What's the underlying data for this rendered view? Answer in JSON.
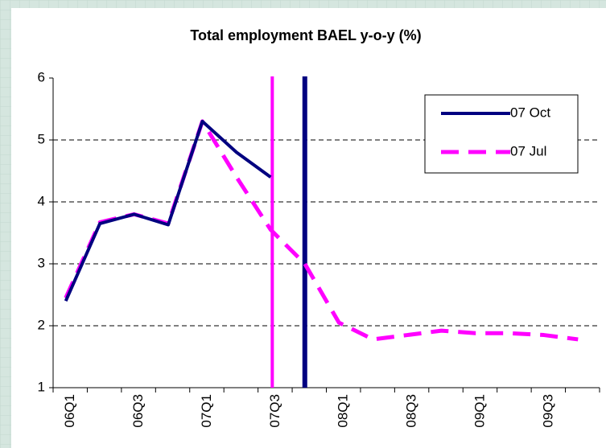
{
  "chart_data": {
    "type": "line",
    "title": "Total employment BAEL y-o-y (%)",
    "categories": [
      "06Q1",
      null,
      "06Q3",
      null,
      "07Q1",
      null,
      "07Q3",
      null,
      "08Q1",
      null,
      "08Q3",
      null,
      "09Q1",
      null,
      "09Q3",
      null
    ],
    "series": [
      {
        "name": "07 Oct",
        "color": "#000080",
        "values": [
          2.4,
          3.65,
          3.8,
          3.63,
          5.3,
          4.8,
          4.4,
          null,
          null,
          null,
          null,
          null,
          null,
          null,
          null,
          null
        ]
      },
      {
        "name": "07 Jul",
        "color": "#ff00ff",
        "values": [
          2.45,
          3.67,
          3.8,
          3.65,
          5.3,
          4.4,
          3.55,
          3.0,
          2.05,
          1.78,
          1.85,
          1.92,
          1.88,
          1.88,
          1.85,
          1.78
        ]
      }
    ],
    "ylim": [
      1,
      6
    ],
    "yticks": [
      1,
      2,
      3,
      4,
      5,
      6
    ],
    "grid": true,
    "legend": "upper right"
  }
}
